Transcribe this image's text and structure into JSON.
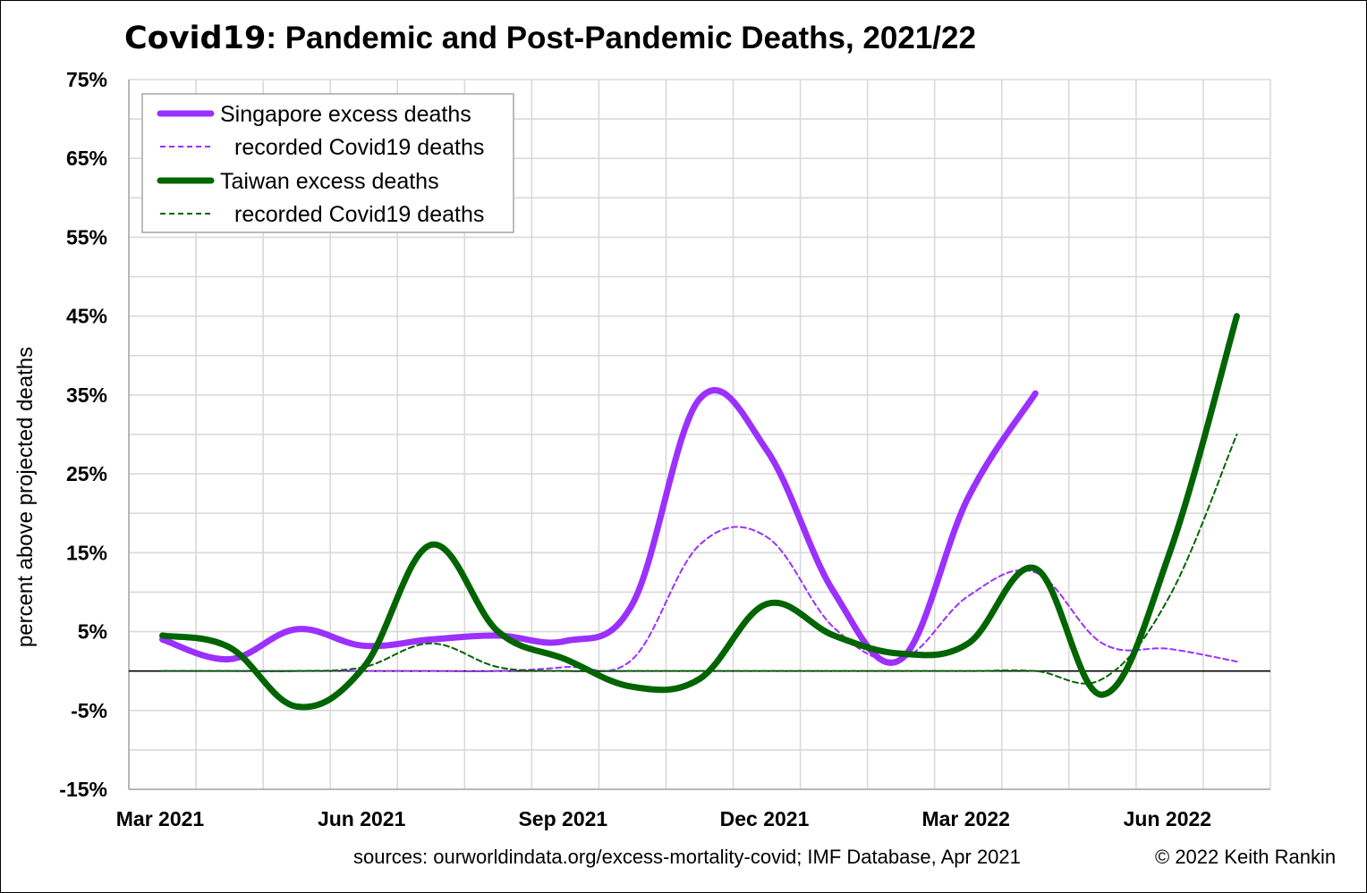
{
  "title": {
    "bold_part": "Covid19",
    "rest": ": Pandemic and Post-Pandemic Deaths, 2021/22"
  },
  "footer": {
    "source": "sources: ourworldindata.org/excess-mortality-covid; IMF Database, Apr 2021",
    "copyright": "© 2022 Keith Rankin"
  },
  "chart_data": {
    "type": "line",
    "title": "Covid19: Pandemic and Post-Pandemic Deaths, 2021/22",
    "xlabel": "",
    "ylabel": "percent above projected deaths",
    "ylim": [
      -15,
      75
    ],
    "yticks": [
      75,
      65,
      55,
      45,
      35,
      25,
      15,
      5,
      -5,
      -15
    ],
    "ytick_labels": [
      "75%",
      "65%",
      "55%",
      "45%",
      "35%",
      "25%",
      "15%",
      "5%",
      "-5%",
      "-15%"
    ],
    "xlim": [
      "2021-02",
      "2022-07"
    ],
    "xtick_labels": [
      {
        "month": "2021-02",
        "label": "Mar 2021"
      },
      {
        "month": "2021-05",
        "label": "Jun 2021"
      },
      {
        "month": "2021-08",
        "label": "Sep 2021"
      },
      {
        "month": "2021-11",
        "label": "Dec 2021"
      },
      {
        "month": "2022-02",
        "label": "Mar 2022"
      },
      {
        "month": "2022-05",
        "label": "Jun 2022"
      }
    ],
    "grid": true,
    "zero_line": true,
    "legend_position": "top-left",
    "series": [
      {
        "name": "Singapore excess deaths",
        "color": "#9b30ff",
        "style": "solid",
        "points": [
          [
            "2021-02",
            4.0
          ],
          [
            "2021-03",
            1.5
          ],
          [
            "2021-04",
            5.3
          ],
          [
            "2021-05",
            3.2
          ],
          [
            "2021-06",
            4.0
          ],
          [
            "2021-07",
            4.5
          ],
          [
            "2021-08",
            3.8
          ],
          [
            "2021-09",
            8.5
          ],
          [
            "2021-10",
            34.5
          ],
          [
            "2021-11",
            28.0
          ],
          [
            "2021-12",
            10.0
          ],
          [
            "2022-01",
            1.5
          ],
          [
            "2022-02",
            22.0
          ],
          [
            "2022-03",
            35.2
          ]
        ]
      },
      {
        "name": "recorded Covid19 deaths",
        "color": "#9b30ff",
        "style": "dashed",
        "points": [
          [
            "2021-02",
            0.0
          ],
          [
            "2021-03",
            0.0
          ],
          [
            "2021-04",
            0.0
          ],
          [
            "2021-05",
            0.0
          ],
          [
            "2021-06",
            0.0
          ],
          [
            "2021-07",
            0.0
          ],
          [
            "2021-08",
            0.5
          ],
          [
            "2021-09",
            1.5
          ],
          [
            "2021-10",
            16.0
          ],
          [
            "2021-11",
            17.0
          ],
          [
            "2021-12",
            5.5
          ],
          [
            "2022-01",
            1.5
          ],
          [
            "2022-02",
            9.5
          ],
          [
            "2022-03",
            12.5
          ],
          [
            "2022-04",
            3.5
          ],
          [
            "2022-05",
            2.8
          ],
          [
            "2022-06",
            1.2
          ]
        ]
      },
      {
        "name": "Taiwan excess deaths",
        "color": "#006400",
        "style": "solid",
        "points": [
          [
            "2021-02",
            4.5
          ],
          [
            "2021-03",
            3.0
          ],
          [
            "2021-04",
            -4.5
          ],
          [
            "2021-05",
            0.5
          ],
          [
            "2021-06",
            16.0
          ],
          [
            "2021-07",
            5.0
          ],
          [
            "2021-08",
            1.5
          ],
          [
            "2021-09",
            -2.0
          ],
          [
            "2021-10",
            -1.0
          ],
          [
            "2021-11",
            8.5
          ],
          [
            "2021-12",
            4.5
          ],
          [
            "2022-01",
            2.2
          ],
          [
            "2022-02",
            3.5
          ],
          [
            "2022-03",
            13.0
          ],
          [
            "2022-04",
            -3.0
          ],
          [
            "2022-05",
            15.0
          ],
          [
            "2022-06",
            45.0
          ]
        ]
      },
      {
        "name": "recorded Covid19 deaths",
        "color": "#006400",
        "style": "dashed",
        "points": [
          [
            "2021-02",
            0.0
          ],
          [
            "2021-03",
            0.0
          ],
          [
            "2021-04",
            0.0
          ],
          [
            "2021-05",
            0.5
          ],
          [
            "2021-06",
            3.5
          ],
          [
            "2021-07",
            0.5
          ],
          [
            "2021-08",
            0.0
          ],
          [
            "2021-09",
            0.0
          ],
          [
            "2021-10",
            0.0
          ],
          [
            "2021-11",
            0.0
          ],
          [
            "2021-12",
            0.0
          ],
          [
            "2022-01",
            0.0
          ],
          [
            "2022-02",
            0.0
          ],
          [
            "2022-03",
            0.0
          ],
          [
            "2022-04",
            -1.0
          ],
          [
            "2022-05",
            9.5
          ],
          [
            "2022-06",
            30.0
          ]
        ]
      }
    ]
  }
}
